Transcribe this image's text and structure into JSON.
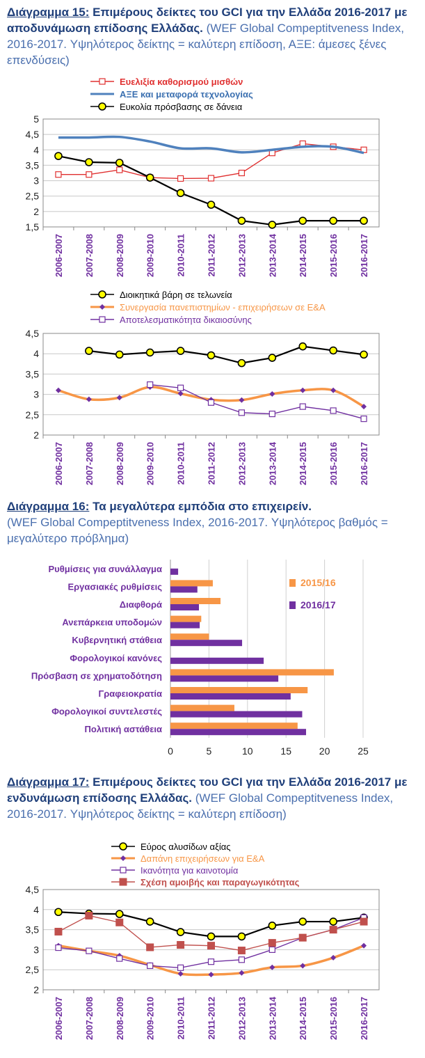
{
  "captions": {
    "fig15": {
      "label": "Διάγραμμα 15:",
      "title": "Επιμέρους δείκτες του GCI για την Ελλάδα 2016-2017 με αποδυνάμωση επίδοσης Ελλάδας.",
      "note": "(WEF Global Compeptitveness Index, 2016-2017. Υψηλότερος δείκτης = καλύτερη επίδοση, ΑΞΕ: άμεσες ξένες επενδύσεις)"
    },
    "fig16": {
      "label": "Διάγραμμα 16:",
      "title": "Τα μεγαλύτερα εμπόδια στο επιχειρείν.",
      "note": "(WEF Global Compeptitveness Index, 2016-2017. Υψηλότερος βαθμός = μεγαλύτερο πρόβλημα)"
    },
    "fig17": {
      "label": "Διάγραμμα 17:",
      "title": "Επιμέρους δείκτες του GCI για την Ελλάδα 2016-2017 με ενδυνάμωση επίδοσης Ελλάδας.",
      "note": "(WEF Global Compeptitveness Index, 2016-2017. Υψηλότερος δείκτης = καλύτερη επίδοση)"
    }
  },
  "chart_data": [
    {
      "id": "chart1",
      "type": "line",
      "categories": [
        "2006-2007",
        "2007-2008",
        "2008-2009",
        "2009-2010",
        "2010-2011",
        "2011-2012",
        "2012-2013",
        "2013-2014",
        "2014-2015",
        "2015-2016",
        "2016-2017"
      ],
      "ylim": [
        1.5,
        5
      ],
      "yticks": [
        "1,5",
        "2",
        "2,5",
        "3",
        "3,5",
        "4",
        "4,5",
        "5"
      ],
      "grid": true,
      "legend_position": "top",
      "series": [
        {
          "name": "Ευελιξία καθορισμού μισθών",
          "color": "#e03030",
          "marker": "square-open",
          "smooth": false,
          "text_color": "#e03030",
          "bold": true,
          "values": [
            3.2,
            3.2,
            3.35,
            3.1,
            3.07,
            3.08,
            3.25,
            3.9,
            4.2,
            4.1,
            4.0
          ]
        },
        {
          "name": "ΑΞΕ και μεταφορά τεχνολογίας",
          "color": "#4f81bd",
          "marker": "none",
          "smooth": true,
          "text_color": "#3a6fb0",
          "bold": true,
          "values": [
            4.4,
            4.4,
            4.42,
            4.27,
            4.05,
            4.05,
            3.92,
            4.0,
            4.1,
            4.1,
            3.9
          ]
        },
        {
          "name": "Ευκολία πρόσβασης σε δάνεια",
          "color": "#000000",
          "marker": "circle-yellow",
          "smooth": false,
          "text_color": "#000000",
          "bold": false,
          "values": [
            3.8,
            3.6,
            3.58,
            3.1,
            2.6,
            2.22,
            1.7,
            1.57,
            1.7,
            1.7,
            1.7
          ]
        }
      ]
    },
    {
      "id": "chart2",
      "type": "line",
      "categories": [
        "2006-2007",
        "2007-2008",
        "2008-2009",
        "2009-2010",
        "2010-2011",
        "2011-2012",
        "2012-2013",
        "2013-2014",
        "2014-2015",
        "2015-2016",
        "2016-2017"
      ],
      "ylim": [
        2,
        4.5
      ],
      "yticks": [
        "2",
        "2,5",
        "3",
        "3,5",
        "4",
        "4,5"
      ],
      "grid": true,
      "legend_position": "top",
      "series": [
        {
          "name": "Διοικητικά βάρη σε τελωνεία",
          "color": "#000000",
          "marker": "circle-yellow",
          "smooth": false,
          "text_color": "#000000",
          "bold": false,
          "values": [
            null,
            4.07,
            3.98,
            4.03,
            4.07,
            3.96,
            3.77,
            3.9,
            4.18,
            4.08,
            3.98
          ]
        },
        {
          "name": "Συνεργασία πανεπιστημίων - επιχειρήσεων σε Ε&Α",
          "color": "#f79646",
          "marker": "diamond-purple",
          "smooth": true,
          "text_color": "#f79646",
          "bold": false,
          "values": [
            3.1,
            2.88,
            2.92,
            3.18,
            3.02,
            2.87,
            2.86,
            3.01,
            3.1,
            3.1,
            2.7
          ]
        },
        {
          "name": "Αποτελεσματικότητα δικαιοσύνης",
          "color": "#7030a0",
          "marker": "square-open",
          "smooth": false,
          "text_color": "#7030a0",
          "bold": false,
          "values": [
            null,
            null,
            null,
            3.24,
            3.16,
            2.8,
            2.55,
            2.52,
            2.7,
            2.6,
            2.4
          ]
        }
      ]
    },
    {
      "id": "chart3",
      "type": "bar",
      "orientation": "horizontal",
      "categories": [
        "Ρυθμίσεις για συνάλλαγμα",
        "Εργασιακές ρυθμίσεις",
        "Διαφθορά",
        "Ανεπάρκεια υποδομών",
        "Κυβερνητική στάθεια",
        "Φορολογικοί κανόνες",
        "Πρόσβαση σε χρηματοδότηση",
        "Γραφειοκρατία",
        "Φορολογικοί συντελεστές",
        "Πολιτική αστάθεια"
      ],
      "xlim": [
        0,
        25
      ],
      "xticks": [
        "0",
        "5",
        "10",
        "15",
        "20",
        "25"
      ],
      "grid": true,
      "legend_position": "right",
      "series": [
        {
          "name": "2015/16",
          "color": "#f79646",
          "values": [
            0,
            5.5,
            6.5,
            4.0,
            5.0,
            0,
            21.2,
            17.8,
            8.3,
            16.5
          ]
        },
        {
          "name": "2016/17",
          "color": "#7030a0",
          "values": [
            1.0,
            3.5,
            3.7,
            3.8,
            9.3,
            12.1,
            14.0,
            15.6,
            17.1,
            17.6
          ]
        }
      ]
    },
    {
      "id": "chart4",
      "type": "line",
      "categories": [
        "2006-2007",
        "2007-2008",
        "2008-2009",
        "2009-2010",
        "2010-2011",
        "2011-2012",
        "2012-2013",
        "2013-2014",
        "2014-2015",
        "2015-2016",
        "2016-2017"
      ],
      "ylim": [
        2,
        4.5
      ],
      "yticks": [
        "2",
        "2,5",
        "3",
        "3,5",
        "4",
        "4,5"
      ],
      "grid": true,
      "legend_position": "top",
      "series": [
        {
          "name": "Εύρος αλυσίδων αξίας",
          "color": "#000000",
          "marker": "circle-yellow",
          "smooth": false,
          "text_color": "#000000",
          "bold": false,
          "values": [
            3.94,
            3.9,
            3.89,
            3.7,
            3.44,
            3.33,
            3.33,
            3.6,
            3.7,
            3.7,
            3.8
          ]
        },
        {
          "name": "Δαπάνη επιχειρήσεων για Ε&Α",
          "color": "#f79646",
          "marker": "diamond-purple",
          "smooth": true,
          "text_color": "#f79646",
          "bold": false,
          "values": [
            3.1,
            2.97,
            2.85,
            2.62,
            2.4,
            2.38,
            2.42,
            2.56,
            2.6,
            2.8,
            3.1
          ]
        },
        {
          "name": "Ικανότητα για καινοτομία",
          "color": "#7030a0",
          "marker": "square-open",
          "smooth": false,
          "text_color": "#7030a0",
          "bold": false,
          "values": [
            3.05,
            2.97,
            2.78,
            2.6,
            2.55,
            2.7,
            2.75,
            3.0,
            3.3,
            3.5,
            3.8
          ]
        },
        {
          "name": "Σχέση αμοιβής και παραγωγικότητας",
          "color": "#c0504d",
          "marker": "square-red",
          "smooth": false,
          "text_color": "#c0504d",
          "bold": true,
          "values": [
            3.45,
            3.85,
            3.68,
            3.06,
            3.12,
            3.1,
            2.98,
            3.17,
            3.3,
            3.5,
            3.7
          ]
        }
      ]
    }
  ]
}
